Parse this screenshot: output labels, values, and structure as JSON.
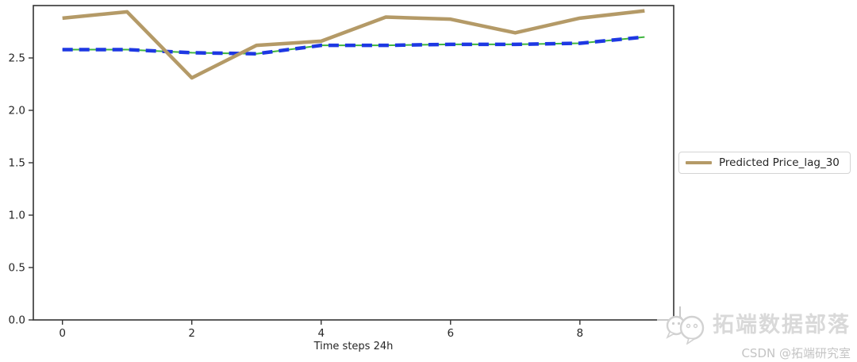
{
  "chart_data": {
    "type": "line",
    "title": "",
    "xlabel": "Time steps 24h",
    "ylabel": "",
    "x": [
      0,
      1,
      2,
      3,
      4,
      5,
      6,
      7,
      8,
      9
    ],
    "series": [
      {
        "id": "actual-price-underlay",
        "label": null,
        "color": "#3fb53f",
        "style": "solid",
        "stroke_width": 2,
        "in_legend": false,
        "note": "green line almost fully hidden beneath blue dashed line",
        "values": [
          2.58,
          2.58,
          2.55,
          2.54,
          2.62,
          2.62,
          2.63,
          2.63,
          2.64,
          2.7
        ]
      },
      {
        "id": "dashed-blue-prediction",
        "label": null,
        "color": "#1e38e3",
        "style": "dashed",
        "stroke_width": 4.5,
        "dash": "13 8",
        "in_legend": false,
        "values": [
          2.58,
          2.58,
          2.55,
          2.54,
          2.62,
          2.62,
          2.63,
          2.63,
          2.64,
          2.7
        ]
      },
      {
        "id": "predicted-price-lag-30",
        "label": "Predicted Price_lag_30",
        "color": "#b49a67",
        "style": "solid",
        "stroke_width": 4.5,
        "in_legend": true,
        "values": [
          2.88,
          2.94,
          2.31,
          2.62,
          2.66,
          2.89,
          2.87,
          2.74,
          2.88,
          2.95
        ]
      }
    ],
    "xticks": [
      0,
      2,
      4,
      6,
      8
    ],
    "ytick_values": [
      0.0,
      0.5,
      1.0,
      1.5,
      2.0,
      2.5
    ],
    "ytick_labels": [
      "0.0",
      "0.5",
      "1.0",
      "1.5",
      "2.0",
      "2.5"
    ],
    "xlim": [
      -0.45,
      9.45
    ],
    "ylim": [
      0.0,
      3.0
    ],
    "grid": false,
    "legend": {
      "position": "right-outside",
      "entries": [
        "Predicted Price_lag_30"
      ]
    }
  },
  "axis": {
    "xlabel": "Time steps 24h"
  },
  "legend": {
    "label": "Predicted Price_lag_30",
    "swatch_color": "#b49a67"
  },
  "watermark": {
    "brand": "拓端数据部落",
    "credit": "CSDN @拓端研究室",
    "icon": "chat-bubbles-logo"
  },
  "colors": {
    "background": "#ffffff",
    "spine": "#333333",
    "tick_text": "#262626",
    "predicted_line": "#b49a67",
    "dashed_line": "#1e38e3",
    "underlay_line": "#3fb53f",
    "watermark_text": "#d9d9d9",
    "watermark_credit": "#c4c4c4"
  }
}
